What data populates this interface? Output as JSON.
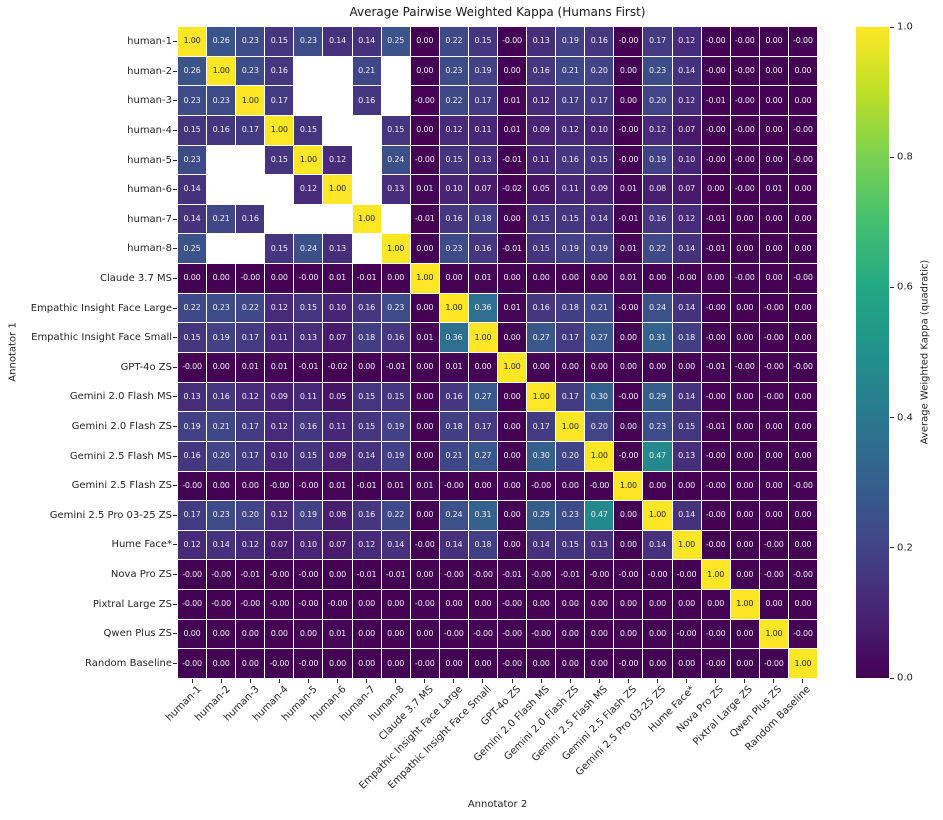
{
  "chart_data": {
    "type": "heatmap",
    "title": "Average Pairwise Weighted Kappa (Humans First)",
    "xlabel": "Annotator 2",
    "ylabel": "Annotator 1",
    "colorbar_label": "Average Weighted Kappa (quadratic)",
    "colorbar_ticks": [
      "1.0",
      "0.8",
      "0.6",
      "0.4",
      "0.2",
      "0.0"
    ],
    "colorbar_tick_values": [
      1.0,
      0.8,
      0.6,
      0.4,
      0.2,
      0.0
    ],
    "vmin": 0.0,
    "vmax": 1.0,
    "colormap": "viridis",
    "colormap_stops": [
      "#440154",
      "#482475",
      "#414487",
      "#355f8d",
      "#2a788e",
      "#21918c",
      "#22a884",
      "#44bf70",
      "#7ad151",
      "#bddf26",
      "#fde725"
    ],
    "colors": {
      "background": "#ffffff",
      "gridline": "#ffffff",
      "missing_cell": "#ffffff",
      "annotation_light": "#f2eef7",
      "annotation_dark": "#262626",
      "tick_text": "#262626",
      "title_text": "#1a1a1a"
    },
    "labels": [
      "human-1",
      "human-2",
      "human-3",
      "human-4",
      "human-5",
      "human-6",
      "human-7",
      "human-8",
      "Claude 3.7 MS",
      "Empathic Insight Face Large",
      "Empathic Insight Face Small",
      "GPT-4o ZS",
      "Gemini 2.0 Flash MS",
      "Gemini 2.0 Flash ZS",
      "Gemini 2.5 Flash MS",
      "Gemini 2.5 Flash ZS",
      "Gemini 2.5 Pro 03-25 ZS",
      "Hume Face*",
      "Nova Pro ZS",
      "Pixtral Large ZS",
      "Qwen Plus ZS",
      "Random Baseline"
    ],
    "values": [
      [
        "1.00",
        "0.26",
        "0.23",
        "0.15",
        "0.23",
        "0.14",
        "0.14",
        "0.25",
        "0.00",
        "0.22",
        "0.15",
        "-0.00",
        "0.13",
        "0.19",
        "0.16",
        "-0.00",
        "0.17",
        "0.12",
        "-0.00",
        "-0.00",
        "0.00",
        "-0.00"
      ],
      [
        "0.26",
        "1.00",
        "0.23",
        "0.16",
        null,
        null,
        "0.21",
        null,
        "0.00",
        "0.23",
        "0.19",
        "0.00",
        "0.16",
        "0.21",
        "0.20",
        "0.00",
        "0.23",
        "0.14",
        "-0.00",
        "-0.00",
        "0.00",
        "0.00"
      ],
      [
        "0.23",
        "0.23",
        "1.00",
        "0.17",
        null,
        null,
        "0.16",
        null,
        "-0.00",
        "0.22",
        "0.17",
        "0.01",
        "0.12",
        "0.17",
        "0.17",
        "0.00",
        "0.20",
        "0.12",
        "-0.01",
        "-0.00",
        "0.00",
        "0.00"
      ],
      [
        "0.15",
        "0.16",
        "0.17",
        "1.00",
        "0.15",
        null,
        null,
        "0.15",
        "0.00",
        "0.12",
        "0.11",
        "0.01",
        "0.09",
        "0.12",
        "0.10",
        "-0.00",
        "0.12",
        "0.07",
        "-0.00",
        "-0.00",
        "0.00",
        "-0.00"
      ],
      [
        "0.23",
        null,
        null,
        "0.15",
        "1.00",
        "0.12",
        null,
        "0.24",
        "-0.00",
        "0.15",
        "0.13",
        "-0.01",
        "0.11",
        "0.16",
        "0.15",
        "-0.00",
        "0.19",
        "0.10",
        "-0.00",
        "-0.00",
        "0.00",
        "-0.00"
      ],
      [
        "0.14",
        null,
        null,
        null,
        "0.12",
        "1.00",
        null,
        "0.13",
        "0.01",
        "0.10",
        "0.07",
        "-0.02",
        "0.05",
        "0.11",
        "0.09",
        "0.01",
        "0.08",
        "0.07",
        "0.00",
        "-0.00",
        "0.01",
        "0.00"
      ],
      [
        "0.14",
        "0.21",
        "0.16",
        null,
        null,
        null,
        "1.00",
        null,
        "-0.01",
        "0.16",
        "0.18",
        "0.00",
        "0.15",
        "0.15",
        "0.14",
        "-0.01",
        "0.16",
        "0.12",
        "-0.01",
        "0.00",
        "0.00",
        "0.00"
      ],
      [
        "0.25",
        null,
        null,
        "0.15",
        "0.24",
        "0.13",
        null,
        "1.00",
        "0.00",
        "0.23",
        "0.16",
        "-0.01",
        "0.15",
        "0.19",
        "0.19",
        "0.01",
        "0.22",
        "0.14",
        "-0.01",
        "0.00",
        "0.00",
        "0.00"
      ],
      [
        "0.00",
        "0.00",
        "-0.00",
        "0.00",
        "-0.00",
        "0.01",
        "-0.01",
        "0.00",
        "1.00",
        "0.00",
        "0.01",
        "0.00",
        "0.00",
        "0.00",
        "0.00",
        "0.01",
        "0.00",
        "-0.00",
        "0.00",
        "-0.00",
        "0.00",
        "-0.00"
      ],
      [
        "0.22",
        "0.23",
        "0.22",
        "0.12",
        "0.15",
        "0.10",
        "0.16",
        "0.23",
        "0.00",
        "1.00",
        "0.36",
        "0.01",
        "0.16",
        "0.18",
        "0.21",
        "-0.00",
        "0.24",
        "0.14",
        "-0.00",
        "0.00",
        "-0.00",
        "0.00"
      ],
      [
        "0.15",
        "0.19",
        "0.17",
        "0.11",
        "0.13",
        "0.07",
        "0.18",
        "0.16",
        "0.01",
        "0.36",
        "1.00",
        "0.00",
        "0.27",
        "0.17",
        "0.27",
        "0.00",
        "0.31",
        "0.18",
        "-0.00",
        "0.00",
        "-0.00",
        "0.00"
      ],
      [
        "-0.00",
        "0.00",
        "0.01",
        "0.01",
        "-0.01",
        "-0.02",
        "0.00",
        "-0.01",
        "0.00",
        "0.01",
        "0.00",
        "1.00",
        "0.00",
        "0.00",
        "0.00",
        "0.00",
        "0.00",
        "0.00",
        "-0.01",
        "-0.00",
        "-0.00",
        "-0.00"
      ],
      [
        "0.13",
        "0.16",
        "0.12",
        "0.09",
        "0.11",
        "0.05",
        "0.15",
        "0.15",
        "0.00",
        "0.16",
        "0.27",
        "0.00",
        "1.00",
        "0.17",
        "0.30",
        "-0.00",
        "0.29",
        "0.14",
        "-0.00",
        "0.00",
        "-0.00",
        "0.00"
      ],
      [
        "0.19",
        "0.21",
        "0.17",
        "0.12",
        "0.16",
        "0.11",
        "0.15",
        "0.19",
        "0.00",
        "0.18",
        "0.17",
        "0.00",
        "0.17",
        "1.00",
        "0.20",
        "0.00",
        "0.23",
        "0.15",
        "-0.01",
        "0.00",
        "0.00",
        "0.00"
      ],
      [
        "0.16",
        "0.20",
        "0.17",
        "0.10",
        "0.15",
        "0.09",
        "0.14",
        "0.19",
        "0.00",
        "0.21",
        "0.27",
        "0.00",
        "0.30",
        "0.20",
        "1.00",
        "-0.00",
        "0.47",
        "0.13",
        "-0.00",
        "0.00",
        "0.00",
        "0.00"
      ],
      [
        "-0.00",
        "0.00",
        "0.00",
        "-0.00",
        "-0.00",
        "0.01",
        "-0.01",
        "0.01",
        "0.01",
        "-0.00",
        "0.00",
        "0.00",
        "-0.00",
        "0.00",
        "-0.00",
        "1.00",
        "0.00",
        "0.00",
        "-0.00",
        "0.00",
        "0.00",
        "-0.00"
      ],
      [
        "0.17",
        "0.23",
        "0.20",
        "0.12",
        "0.19",
        "0.08",
        "0.16",
        "0.22",
        "0.00",
        "0.24",
        "0.31",
        "0.00",
        "0.29",
        "0.23",
        "0.47",
        "0.00",
        "1.00",
        "0.14",
        "-0.00",
        "0.00",
        "0.00",
        "0.00"
      ],
      [
        "0.12",
        "0.14",
        "0.12",
        "0.07",
        "0.10",
        "0.07",
        "0.12",
        "0.14",
        "-0.00",
        "0.14",
        "0.18",
        "0.00",
        "0.14",
        "0.15",
        "0.13",
        "0.00",
        "0.14",
        "1.00",
        "-0.00",
        "0.00",
        "-0.00",
        "0.00"
      ],
      [
        "-0.00",
        "-0.00",
        "-0.01",
        "-0.00",
        "-0.00",
        "0.00",
        "-0.01",
        "-0.01",
        "0.00",
        "-0.00",
        "-0.00",
        "-0.01",
        "-0.00",
        "-0.01",
        "-0.00",
        "-0.00",
        "-0.00",
        "-0.00",
        "1.00",
        "0.00",
        "-0.00",
        "-0.00"
      ],
      [
        "-0.00",
        "-0.00",
        "-0.00",
        "-0.00",
        "-0.00",
        "-0.00",
        "0.00",
        "0.00",
        "-0.00",
        "0.00",
        "0.00",
        "-0.00",
        "0.00",
        "0.00",
        "0.00",
        "0.00",
        "0.00",
        "0.00",
        "0.00",
        "1.00",
        "0.00",
        "0.00"
      ],
      [
        "0.00",
        "0.00",
        "0.00",
        "0.00",
        "0.00",
        "0.01",
        "0.00",
        "0.00",
        "0.00",
        "-0.00",
        "-0.00",
        "-0.00",
        "-0.00",
        "0.00",
        "0.00",
        "0.00",
        "0.00",
        "-0.00",
        "-0.00",
        "0.00",
        "1.00",
        "-0.00"
      ],
      [
        "-0.00",
        "0.00",
        "0.00",
        "-0.00",
        "-0.00",
        "0.00",
        "0.00",
        "0.00",
        "-0.00",
        "0.00",
        "0.00",
        "-0.00",
        "0.00",
        "0.00",
        "0.00",
        "-0.00",
        "0.00",
        "0.00",
        "-0.00",
        "0.00",
        "-0.00",
        "1.00"
      ]
    ]
  }
}
